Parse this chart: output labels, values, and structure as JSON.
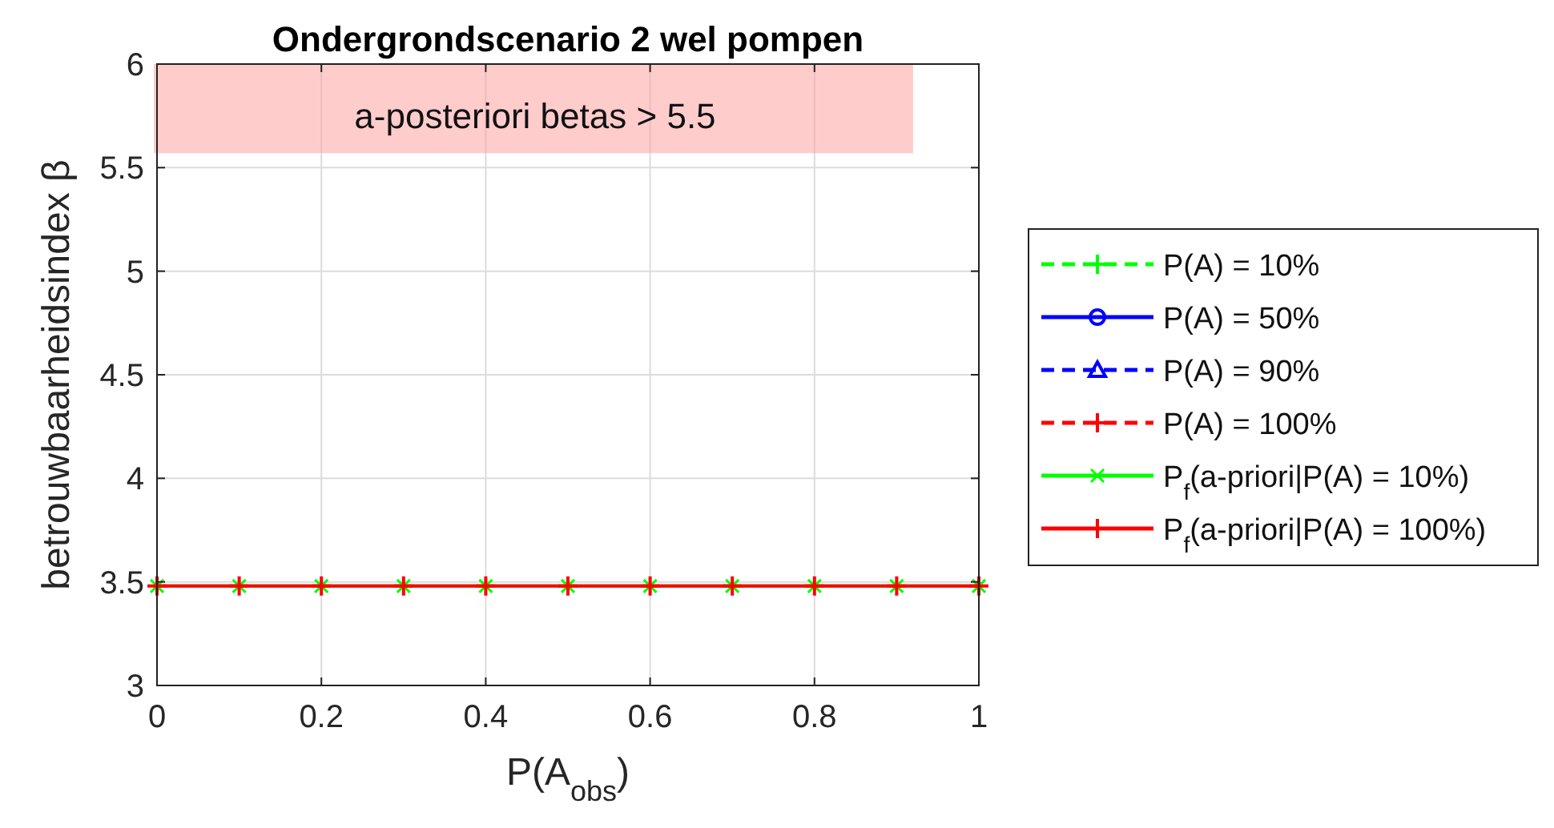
{
  "chart_data": {
    "type": "line",
    "title": "Ondergrondscenario 2 wel pompen",
    "xlabel": "P(A$_{obs}$)",
    "ylabel": "betrouwbaarheidsindex β",
    "x": [
      0,
      0.1,
      0.2,
      0.3,
      0.4,
      0.5,
      0.6,
      0.7,
      0.8,
      0.9,
      1
    ],
    "series": [
      {
        "name": "P(A) = 10%",
        "color": "#00ff00",
        "line_style": "dashed",
        "marker": "plus",
        "values": [
          null,
          null,
          null,
          null,
          null,
          null,
          null,
          null,
          null,
          null,
          null
        ]
      },
      {
        "name": "P(A) = 50%",
        "color": "#0000ff",
        "line_style": "solid",
        "marker": "circle",
        "values": [
          null,
          null,
          null,
          null,
          null,
          null,
          null,
          null,
          null,
          null,
          null
        ]
      },
      {
        "name": "P(A) = 90%",
        "color": "#0000ff",
        "line_style": "dashed",
        "marker": "triangle",
        "values": [
          null,
          null,
          null,
          null,
          null,
          null,
          null,
          null,
          null,
          null,
          null
        ]
      },
      {
        "name": "P(A) = 100%",
        "color": "#ff0000",
        "line_style": "dashed",
        "marker": "plus",
        "values": [
          null,
          null,
          null,
          null,
          null,
          null,
          null,
          null,
          null,
          null,
          null
        ]
      },
      {
        "name": "P$_{f}$(a-priori|P(A) = 10%)",
        "color": "#00ff00",
        "line_style": "solid",
        "marker": "cross",
        "values": [
          3.48,
          3.48,
          3.48,
          3.48,
          3.48,
          3.48,
          3.48,
          3.48,
          3.48,
          3.48,
          3.48
        ]
      },
      {
        "name": "P$_{f}$(a-priori|P(A) = 100%)",
        "color": "#ff0000",
        "line_style": "solid",
        "marker": "plus",
        "values": [
          3.48,
          3.48,
          3.48,
          3.48,
          3.48,
          3.48,
          3.48,
          3.48,
          3.48,
          3.48,
          3.48
        ]
      }
    ],
    "annotations": [
      "a-posteriori betas > 5.5"
    ],
    "xlim": [
      0,
      1
    ],
    "xticks": [
      0,
      0.2,
      0.4,
      0.6,
      0.8,
      1
    ],
    "ylim": [
      3,
      6
    ],
    "yticks": [
      3,
      3.5,
      4,
      4.5,
      5,
      5.5,
      6
    ],
    "grid": true,
    "legend": "right"
  }
}
